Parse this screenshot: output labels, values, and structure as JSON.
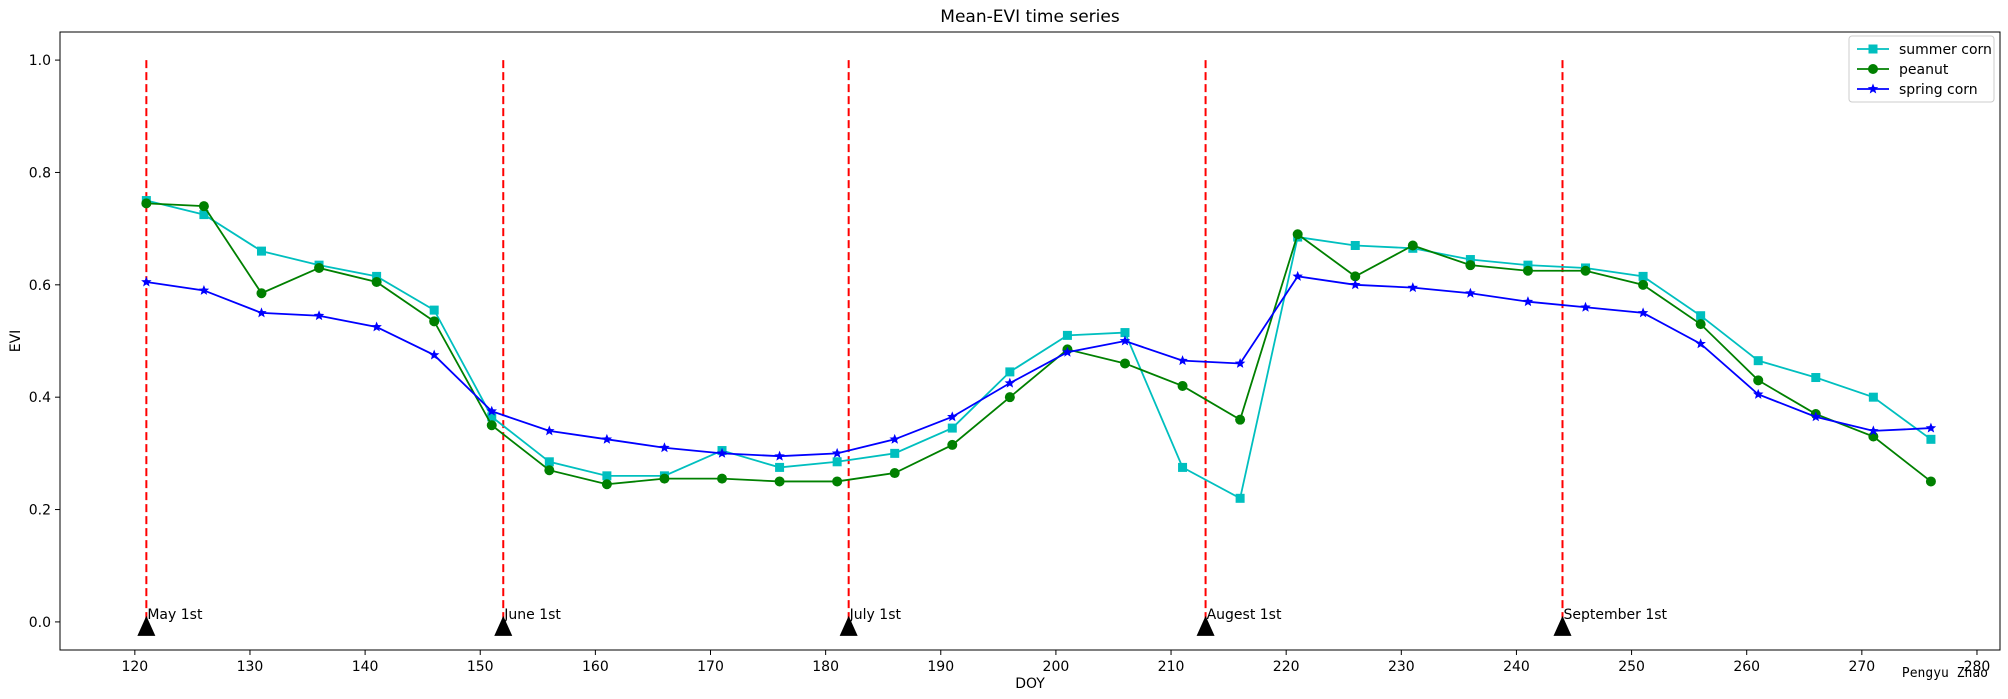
{
  "chart_data": {
    "type": "line",
    "title": "Mean-EVI time series",
    "xlabel": "DOY",
    "ylabel": "EVI",
    "xlim": [
      113.5,
      282
    ],
    "ylim": [
      -0.05,
      1.05
    ],
    "x_ticks": [
      120,
      130,
      140,
      150,
      160,
      170,
      180,
      190,
      200,
      210,
      220,
      230,
      240,
      250,
      260,
      270,
      280
    ],
    "y_ticks": [
      "0.0",
      "0.2",
      "0.4",
      "0.6",
      "0.8",
      "1.0"
    ],
    "grid": false,
    "legend_position": "top-right",
    "x": [
      121,
      126,
      131,
      136,
      141,
      146,
      151,
      156,
      161,
      166,
      171,
      176,
      181,
      186,
      191,
      196,
      201,
      206,
      211,
      216,
      221,
      226,
      231,
      236,
      241,
      246,
      251,
      256,
      261,
      266,
      271,
      276
    ],
    "series": [
      {
        "name": "summer corn",
        "color": "#00bfbf",
        "marker": "square",
        "values": [
          0.75,
          0.725,
          0.66,
          0.635,
          0.615,
          0.555,
          0.365,
          0.285,
          0.26,
          0.26,
          0.305,
          0.275,
          0.285,
          0.3,
          0.345,
          0.445,
          0.51,
          0.515,
          0.275,
          0.22,
          0.685,
          0.67,
          0.665,
          0.645,
          0.635,
          0.63,
          0.615,
          0.545,
          0.465,
          0.435,
          0.4,
          0.325
        ]
      },
      {
        "name": "peanut",
        "color": "#008000",
        "marker": "circle",
        "values": [
          0.745,
          0.74,
          0.585,
          0.63,
          0.605,
          0.535,
          0.35,
          0.27,
          0.245,
          0.255,
          0.255,
          0.25,
          0.25,
          0.265,
          0.315,
          0.4,
          0.485,
          0.46,
          0.42,
          0.36,
          0.69,
          0.615,
          0.67,
          0.635,
          0.625,
          0.625,
          0.6,
          0.53,
          0.43,
          0.37,
          0.33,
          0.25
        ]
      },
      {
        "name": "spring corn",
        "color": "#0000ff",
        "marker": "star",
        "values": [
          0.605,
          0.59,
          0.55,
          0.545,
          0.525,
          0.475,
          0.375,
          0.34,
          0.325,
          0.31,
          0.3,
          0.295,
          0.3,
          0.325,
          0.365,
          0.425,
          0.48,
          0.5,
          0.465,
          0.46,
          0.615,
          0.6,
          0.595,
          0.585,
          0.57,
          0.56,
          0.55,
          0.495,
          0.405,
          0.365,
          0.34,
          0.345
        ]
      }
    ],
    "vlines": {
      "color": "#ff0000",
      "ymin": 0,
      "ymax": 1.0,
      "items": [
        {
          "x": 121,
          "label": "May 1st"
        },
        {
          "x": 152,
          "label": "June 1st"
        },
        {
          "x": 182,
          "label": "July 1st"
        },
        {
          "x": 213,
          "label": "Augest 1st"
        },
        {
          "x": 244,
          "label": "September 1st"
        }
      ]
    },
    "signature": "Pengyu Zhao"
  }
}
